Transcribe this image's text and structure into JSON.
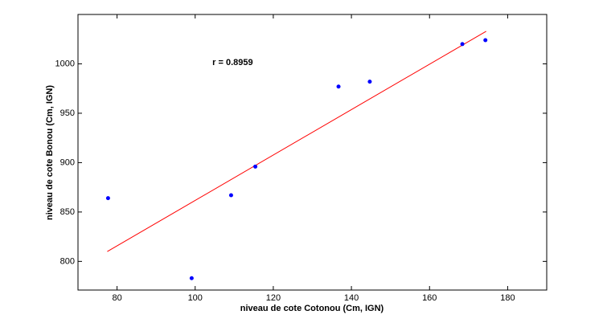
{
  "chart_data": {
    "type": "scatter",
    "x": [
      77.7,
      99.1,
      109.2,
      115.4,
      136.7,
      144.7,
      168.4,
      174.3
    ],
    "values": [
      864,
      783,
      867,
      896,
      977,
      982,
      1020,
      1024
    ],
    "color": "#0000ff",
    "fit": {
      "type": "line",
      "x": [
        77.5,
        174.5
      ],
      "values": [
        810,
        1033
      ],
      "color": "#ff0000"
    },
    "annotation": "r = 0.8959",
    "xlabel": "niveau de cote Cotonou (Cm, IGN)",
    "ylabel": "niveau de cote Bonou (Cm, IGN)",
    "xlim": [
      70,
      190
    ],
    "ylim": [
      771,
      1050
    ],
    "xticks": [
      80,
      100,
      120,
      140,
      160,
      180
    ],
    "yticks": [
      800,
      850,
      900,
      950,
      1000
    ]
  }
}
